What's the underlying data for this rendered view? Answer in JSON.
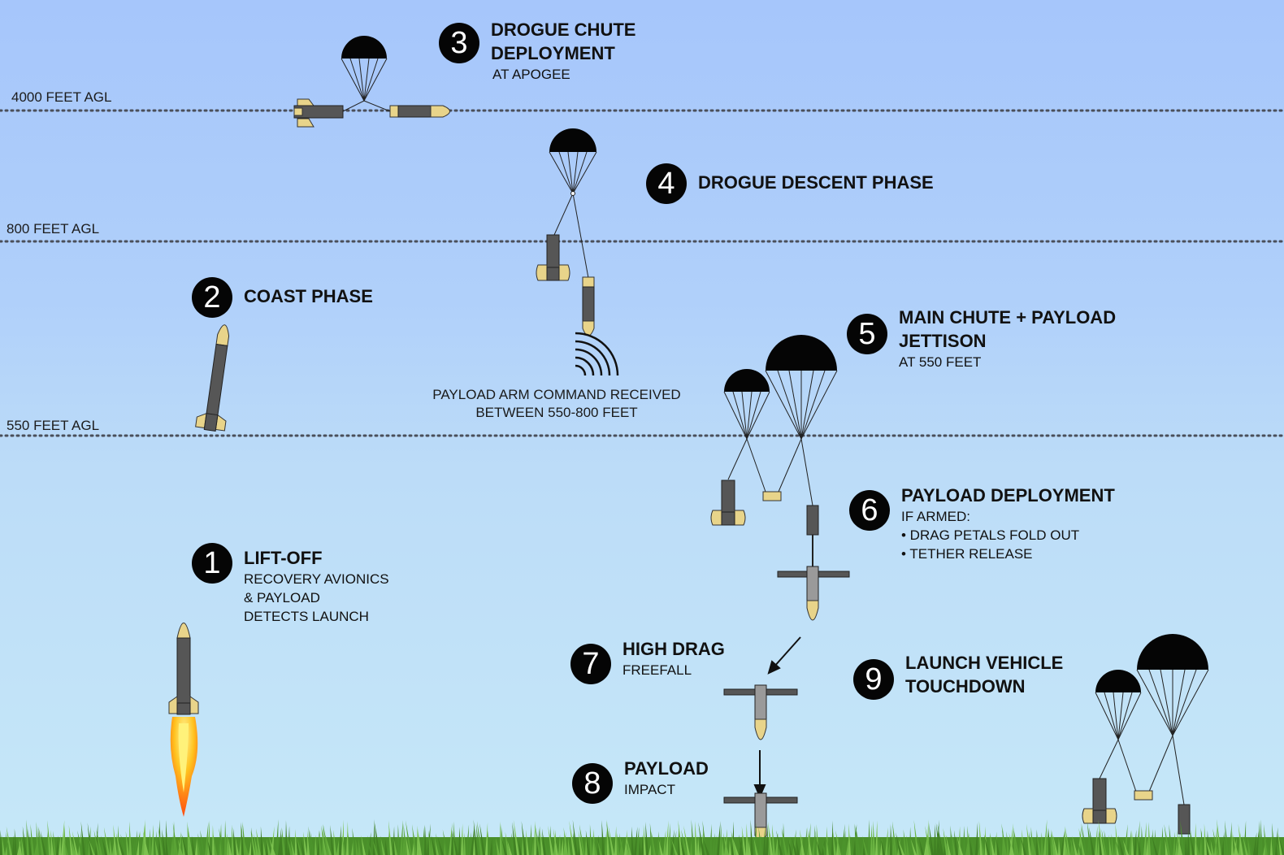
{
  "colors": {
    "sky_top": "#a6c6fb",
    "sky_bottom": "#c6e8f8",
    "body": "#565656",
    "fin": "#e8d48a",
    "nose": "#e8d48a",
    "canopy": "#050505",
    "grass": "#4f9a2e"
  },
  "altitudes": {
    "a4000": "4000 FEET AGL",
    "a800": "800 FEET AGL",
    "a550": "550 FEET AGL"
  },
  "steps": [
    {
      "num": "1",
      "title": "LIFT-OFF",
      "sub": "RECOVERY AVIONICS\n& PAYLOAD\nDETECTS LAUNCH"
    },
    {
      "num": "2",
      "title": "COAST PHASE",
      "sub": ""
    },
    {
      "num": "3",
      "title": "DROGUE CHUTE\nDEPLOYMENT",
      "sub": "AT APOGEE"
    },
    {
      "num": "4",
      "title": "DROGUE DESCENT PHASE",
      "sub": ""
    },
    {
      "num": "5",
      "title": "MAIN CHUTE + PAYLOAD\nJETTISON",
      "sub": "AT 550 FEET"
    },
    {
      "num": "6",
      "title": "PAYLOAD DEPLOYMENT",
      "sub": "IF ARMED:\n   • DRAG PETALS FOLD OUT\n   • TETHER RELEASE"
    },
    {
      "num": "7",
      "title": "HIGH DRAG",
      "sub": "FREEFALL"
    },
    {
      "num": "8",
      "title": "PAYLOAD",
      "sub": "IMPACT"
    },
    {
      "num": "9",
      "title": "LAUNCH VEHICLE\nTOUCHDOWN",
      "sub": ""
    }
  ],
  "notes": {
    "arm_command": "PAYLOAD ARM COMMAND RECEIVED\nBETWEEN 550-800 FEET"
  },
  "icons": [
    "rocket-icon",
    "parachute-icon",
    "payload-icon",
    "signal-waves-icon",
    "arrow-icon",
    "grass"
  ]
}
